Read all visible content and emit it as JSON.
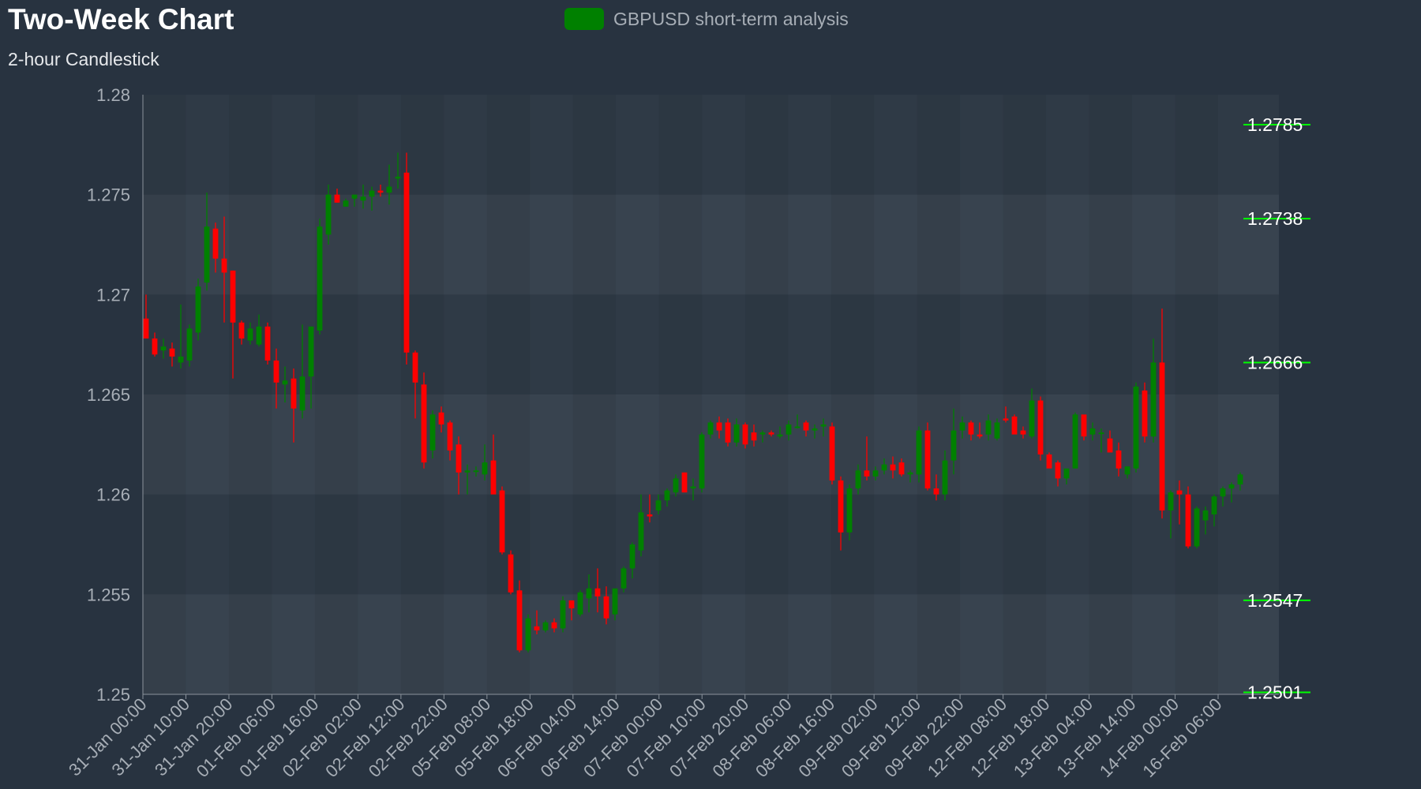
{
  "chart_data": {
    "type": "candlestick",
    "title": "Two-Week Chart",
    "subtitle": "2-hour Candlestick",
    "legend": {
      "label": "GBPUSD short-term analysis",
      "position": "top-center"
    },
    "ylim": [
      1.25,
      1.28
    ],
    "y_ticks": [
      "1.28",
      "1.275",
      "1.27",
      "1.265",
      "1.26",
      "1.255",
      "1.25"
    ],
    "x_tick_labels": [
      "31-Jan 00:00",
      "31-Jan 10:00",
      "31-Jan 20:00",
      "01-Feb 06:00",
      "01-Feb 16:00",
      "02-Feb 02:00",
      "02-Feb 12:00",
      "02-Feb 22:00",
      "05-Feb 08:00",
      "05-Feb 18:00",
      "06-Feb 04:00",
      "06-Feb 14:00",
      "07-Feb 00:00",
      "07-Feb 10:00",
      "07-Feb 20:00",
      "08-Feb 06:00",
      "08-Feb 16:00",
      "09-Feb 02:00",
      "09-Feb 12:00",
      "09-Feb 22:00",
      "12-Feb 08:00",
      "12-Feb 18:00",
      "13-Feb 04:00",
      "13-Feb 14:00",
      "14-Feb 00:00",
      "16-Feb 06:00"
    ],
    "level_labels": [
      "1.2785",
      "1.2738",
      "1.2666",
      "1.2547",
      "1.2501"
    ],
    "grid": true,
    "colors": {
      "up": "#008000",
      "down": "#ff0000",
      "background": "#283340",
      "axis_text": "#a7aeb6",
      "level": "#00ff00"
    },
    "series": [
      {
        "name": "GBPUSD short-term analysis",
        "ohlc": [
          [
            1.2688,
            1.27,
            1.268,
            1.2678
          ],
          [
            1.2678,
            1.2681,
            1.2669,
            1.267
          ],
          [
            1.2672,
            1.2678,
            1.2668,
            1.2674
          ],
          [
            1.2673,
            1.2676,
            1.2664,
            1.2669
          ],
          [
            1.2666,
            1.2695,
            1.2663,
            1.2669
          ],
          [
            1.2667,
            1.2685,
            1.2664,
            1.2683
          ],
          [
            1.2681,
            1.2708,
            1.2677,
            1.2704
          ],
          [
            1.2706,
            1.2751,
            1.2702,
            1.2734
          ],
          [
            1.2733,
            1.2736,
            1.2711,
            1.2718
          ],
          [
            1.2718,
            1.2739,
            1.2686,
            1.2711
          ],
          [
            1.2712,
            1.2712,
            1.2658,
            1.2686
          ],
          [
            1.2686,
            1.2687,
            1.2675,
            1.2678
          ],
          [
            1.2677,
            1.2686,
            1.2675,
            1.2683
          ],
          [
            1.2675,
            1.269,
            1.2674,
            1.2684
          ],
          [
            1.2684,
            1.2686,
            1.2665,
            1.2667
          ],
          [
            1.2667,
            1.2673,
            1.2643,
            1.2656
          ],
          [
            1.2655,
            1.2664,
            1.2646,
            1.2657
          ],
          [
            1.2658,
            1.2663,
            1.2626,
            1.2643
          ],
          [
            1.2642,
            1.2685,
            1.2638,
            1.2659
          ],
          [
            1.2659,
            1.2684,
            1.2643,
            1.2684
          ],
          [
            1.2682,
            1.2738,
            1.268,
            1.2734
          ],
          [
            1.273,
            1.2755,
            1.2725,
            1.275
          ],
          [
            1.275,
            1.2753,
            1.2746,
            1.2746
          ],
          [
            1.2744,
            1.2748,
            1.2744,
            1.2747
          ],
          [
            1.2748,
            1.275,
            1.2744,
            1.275
          ],
          [
            1.2747,
            1.2755,
            1.2743,
            1.2749
          ],
          [
            1.2749,
            1.2754,
            1.2742,
            1.2752
          ],
          [
            1.2752,
            1.2755,
            1.2749,
            1.2751
          ],
          [
            1.2751,
            1.2765,
            1.2745,
            1.2754
          ],
          [
            1.2758,
            1.2771,
            1.2753,
            1.2759
          ],
          [
            1.2761,
            1.2771,
            1.2665,
            1.2671
          ],
          [
            1.2671,
            1.2672,
            1.2638,
            1.2656
          ],
          [
            1.2655,
            1.2661,
            1.2613,
            1.2616
          ],
          [
            1.2622,
            1.2642,
            1.2618,
            1.264
          ],
          [
            1.2641,
            1.2644,
            1.2631,
            1.2635
          ],
          [
            1.2636,
            1.2637,
            1.2617,
            1.2622
          ],
          [
            1.2625,
            1.2629,
            1.26,
            1.2611
          ],
          [
            1.2611,
            1.2615,
            1.26,
            1.2612
          ],
          [
            1.2612,
            1.2614,
            1.2609,
            1.2612
          ],
          [
            1.261,
            1.2625,
            1.2607,
            1.2616
          ],
          [
            1.2617,
            1.263,
            1.2601,
            1.26
          ],
          [
            1.2602,
            1.2604,
            1.257,
            1.2571
          ],
          [
            1.257,
            1.2572,
            1.255,
            1.2551
          ],
          [
            1.2552,
            1.2557,
            1.2521,
            1.2522
          ],
          [
            1.2522,
            1.254,
            1.2521,
            1.2538
          ],
          [
            1.2534,
            1.2542,
            1.253,
            1.2532
          ],
          [
            1.2532,
            1.2537,
            1.2531,
            1.2536
          ],
          [
            1.2536,
            1.2538,
            1.2531,
            1.2533
          ],
          [
            1.2533,
            1.2549,
            1.2531,
            1.2547
          ],
          [
            1.2547,
            1.2547,
            1.2537,
            1.2543
          ],
          [
            1.254,
            1.2552,
            1.2539,
            1.2551
          ],
          [
            1.2548,
            1.256,
            1.2541,
            1.2553
          ],
          [
            1.2553,
            1.2563,
            1.2541,
            1.2549
          ],
          [
            1.2549,
            1.2554,
            1.2535,
            1.2538
          ],
          [
            1.254,
            1.2552,
            1.2537,
            1.2553
          ],
          [
            1.2553,
            1.2564,
            1.2551,
            1.2563
          ],
          [
            1.2563,
            1.2576,
            1.2558,
            1.2575
          ],
          [
            1.2572,
            1.26,
            1.2569,
            1.2591
          ],
          [
            1.259,
            1.26,
            1.2586,
            1.2589
          ],
          [
            1.2592,
            1.26,
            1.259,
            1.2597
          ],
          [
            1.2597,
            1.2603,
            1.2594,
            1.2602
          ],
          [
            1.2601,
            1.261,
            1.2599,
            1.2608
          ],
          [
            1.2611,
            1.2611,
            1.2601,
            1.2601
          ],
          [
            1.2603,
            1.2608,
            1.2597,
            1.2604
          ],
          [
            1.2603,
            1.2631,
            1.2601,
            1.263
          ],
          [
            1.263,
            1.2637,
            1.2628,
            1.2636
          ],
          [
            1.2636,
            1.2639,
            1.2628,
            1.2632
          ],
          [
            1.2636,
            1.2638,
            1.2624,
            1.2626
          ],
          [
            1.2626,
            1.2638,
            1.2624,
            1.2635
          ],
          [
            1.2635,
            1.2636,
            1.2623,
            1.2625
          ],
          [
            1.2631,
            1.2635,
            1.2624,
            1.2627
          ],
          [
            1.263,
            1.2632,
            1.2626,
            1.2631
          ],
          [
            1.2631,
            1.2632,
            1.2629,
            1.263
          ],
          [
            1.2629,
            1.2634,
            1.2628,
            1.263
          ],
          [
            1.263,
            1.2637,
            1.2627,
            1.2635
          ],
          [
            1.2634,
            1.264,
            1.2633,
            1.2634
          ],
          [
            1.2636,
            1.2637,
            1.2629,
            1.2632
          ],
          [
            1.2632,
            1.2635,
            1.2628,
            1.2633
          ],
          [
            1.2634,
            1.2638,
            1.2629,
            1.2635
          ],
          [
            1.2634,
            1.2636,
            1.2605,
            1.2607
          ],
          [
            1.2607,
            1.2609,
            1.2572,
            1.2581
          ],
          [
            1.2581,
            1.2605,
            1.2577,
            1.2603
          ],
          [
            1.2603,
            1.2615,
            1.26,
            1.2612
          ],
          [
            1.2612,
            1.2629,
            1.2607,
            1.2609
          ],
          [
            1.2609,
            1.2614,
            1.2607,
            1.2612
          ],
          [
            1.2612,
            1.2618,
            1.261,
            1.2615
          ],
          [
            1.2615,
            1.2619,
            1.2608,
            1.2612
          ],
          [
            1.2616,
            1.2618,
            1.2609,
            1.261
          ],
          [
            1.261,
            1.2612,
            1.2606,
            1.2611
          ],
          [
            1.261,
            1.2634,
            1.2606,
            1.2632
          ],
          [
            1.2632,
            1.2636,
            1.2602,
            1.2603
          ],
          [
            1.2603,
            1.261,
            1.2597,
            1.26
          ],
          [
            1.26,
            1.2622,
            1.2597,
            1.2617
          ],
          [
            1.2617,
            1.2643,
            1.261,
            1.2632
          ],
          [
            1.2632,
            1.2639,
            1.2628,
            1.2636
          ],
          [
            1.2636,
            1.2637,
            1.2627,
            1.263
          ],
          [
            1.263,
            1.2636,
            1.2628,
            1.2629
          ],
          [
            1.263,
            1.264,
            1.2627,
            1.2637
          ],
          [
            1.2628,
            1.2638,
            1.2627,
            1.2636
          ],
          [
            1.2638,
            1.2644,
            1.2636,
            1.2637
          ],
          [
            1.2639,
            1.264,
            1.2632,
            1.263
          ],
          [
            1.2632,
            1.2634,
            1.2628,
            1.263
          ],
          [
            1.2629,
            1.2653,
            1.2628,
            1.2647
          ],
          [
            1.2647,
            1.2649,
            1.2617,
            1.262
          ],
          [
            1.262,
            1.2621,
            1.2614,
            1.2613
          ],
          [
            1.2616,
            1.2617,
            1.2604,
            1.2608
          ],
          [
            1.2608,
            1.2612,
            1.2605,
            1.2613
          ],
          [
            1.2613,
            1.2641,
            1.2614,
            1.264
          ],
          [
            1.264,
            1.2637,
            1.2627,
            1.2629
          ],
          [
            1.263,
            1.2636,
            1.2627,
            1.2633
          ],
          [
            1.2631,
            1.2633,
            1.2621,
            1.2631
          ],
          [
            1.2628,
            1.2632,
            1.2624,
            1.2621
          ],
          [
            1.2622,
            1.2626,
            1.2609,
            1.2613
          ],
          [
            1.261,
            1.2614,
            1.2608,
            1.2614
          ],
          [
            1.2613,
            1.2656,
            1.2611,
            1.2654
          ],
          [
            1.2652,
            1.2656,
            1.2626,
            1.2629
          ],
          [
            1.2629,
            1.2678,
            1.2626,
            1.2666
          ],
          [
            1.2666,
            1.2693,
            1.2588,
            1.2592
          ],
          [
            1.2592,
            1.2602,
            1.2578,
            1.2601
          ],
          [
            1.2602,
            1.2607,
            1.2585,
            1.26
          ],
          [
            1.26,
            1.2604,
            1.2573,
            1.2574
          ],
          [
            1.2574,
            1.2594,
            1.2573,
            1.2593
          ],
          [
            1.2587,
            1.2594,
            1.258,
            1.2592
          ],
          [
            1.259,
            1.26,
            1.2584,
            1.2599
          ],
          [
            1.2599,
            1.2604,
            1.2594,
            1.2603
          ],
          [
            1.2603,
            1.2606,
            1.2596,
            1.2605
          ],
          [
            1.2605,
            1.2611,
            1.2602,
            1.261
          ]
        ]
      }
    ]
  }
}
